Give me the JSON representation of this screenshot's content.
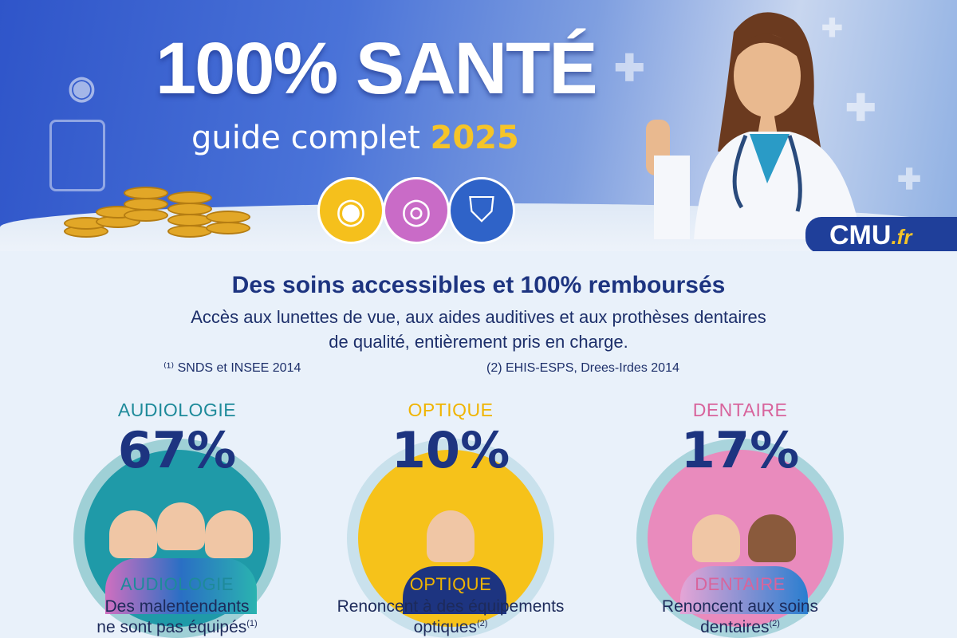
{
  "header": {
    "title": "100% SANTÉ",
    "subtitle": "guide complet",
    "year": "2025",
    "brand": "CMU",
    "brand_suffix": ".fr"
  },
  "icons": [
    "eye-icon",
    "eye-icon",
    "tooth-icon"
  ],
  "colors": {
    "audiologie": "#1e8a9a",
    "optique": "#f0b400",
    "dentaire": "#d8649c",
    "navy": "#1d3480"
  },
  "intro": {
    "heading": "Des soins accessibles et 100% remboursés",
    "line1": "Accès aux lunettes de vue, aux aides auditives et aux prothèses dentaires",
    "line2": "de qualité, entièrement pris en charge.",
    "source1": "⁽¹⁾ SNDS et INSEE 2014",
    "source2": "(2) EHIS-ESPS, Drees-Irdes 2014"
  },
  "stats": [
    {
      "label": "AUDIOLOGIE",
      "percent": "67%",
      "value": 67,
      "line1": "Des malentendants",
      "line2": "ne sont pas équipés",
      "ref": "(1)"
    },
    {
      "label": "OPTIQUE",
      "percent": "10%",
      "value": 10,
      "line1": "Renoncent à des équipements",
      "line2": "optiques",
      "ref": "(2)"
    },
    {
      "label": "DENTAIRE",
      "percent": "17%",
      "value": 17,
      "line1": "Renoncent aux soins",
      "line2": "dentaires",
      "ref": "(2)"
    }
  ]
}
